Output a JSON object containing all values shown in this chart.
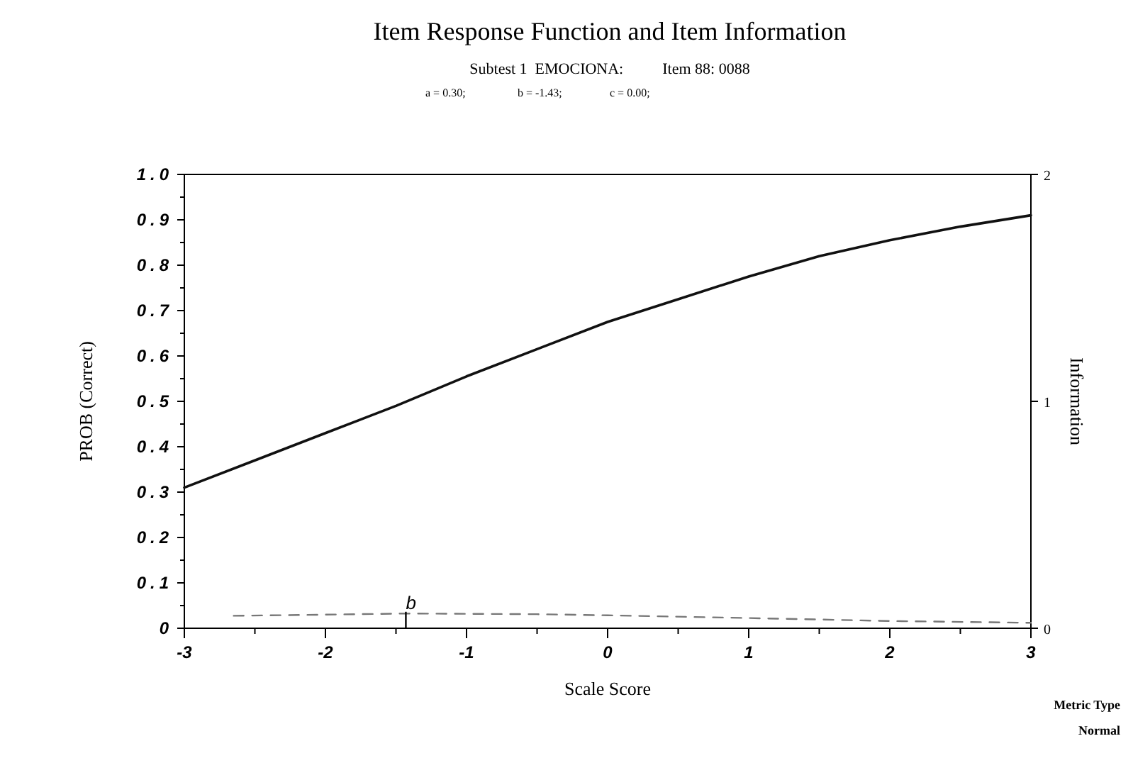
{
  "chart_data": {
    "type": "line",
    "title": "Item Response Function and Item Information",
    "subtitle": "Subtest 1  EMOCIONA:          Item 88: 0088",
    "xlabel": "Scale Score",
    "ylabel": "PROB (Correct)",
    "y2label": "Information",
    "x": [
      -3,
      -2.5,
      -2,
      -1.5,
      -1,
      -0.5,
      0,
      0.5,
      1,
      1.5,
      2,
      2.5,
      3
    ],
    "series": [
      {
        "color": "#111111",
        "line_style": "solid",
        "values": [
          0.31,
          0.37,
          0.43,
          0.49,
          0.555,
          0.615,
          0.675,
          0.725,
          0.775,
          0.82,
          0.855,
          0.885,
          0.91
        ]
      },
      {
        "color": "#777777",
        "line_style": "dashed",
        "axis": "y2",
        "x": [
          -2.65,
          -2,
          -1.43,
          -0.5,
          0,
          1,
          2,
          3
        ],
        "values": [
          0.055,
          0.06,
          0.065,
          0.062,
          0.057,
          0.045,
          0.032,
          0.024
        ]
      }
    ],
    "xlim": [
      -3,
      3
    ],
    "xticks": [
      {
        "value": -3,
        "label": "-3"
      },
      {
        "value": -2.5,
        "label": null
      },
      {
        "value": -2,
        "label": "-2"
      },
      {
        "value": -1.5,
        "label": null
      },
      {
        "value": -1,
        "label": "-1"
      },
      {
        "value": -0.5,
        "label": null
      },
      0,
      {
        "value": 0.5,
        "label": null
      },
      1,
      {
        "value": 1.5,
        "label": null
      },
      2,
      {
        "value": 2.5,
        "label": null
      },
      3
    ],
    "ylim": [
      0,
      1
    ],
    "yticks": [
      0,
      {
        "value": 0.05,
        "label": null
      },
      0.1,
      {
        "value": 0.15,
        "label": null
      },
      0.2,
      {
        "value": 0.25,
        "label": null
      },
      0.3,
      {
        "value": 0.35,
        "label": null
      },
      0.4,
      {
        "value": 0.45,
        "label": null
      },
      0.5,
      {
        "value": 0.55,
        "label": null
      },
      0.6,
      {
        "value": 0.65,
        "label": null
      },
      0.7,
      {
        "value": 0.75,
        "label": null
      },
      0.8,
      {
        "value": 0.85,
        "label": null
      },
      0.9,
      {
        "value": 0.95,
        "label": null
      },
      {
        "value": 1,
        "label": "1.0"
      }
    ],
    "y2lim": [
      0,
      2
    ],
    "y2ticks": [
      0,
      1,
      2
    ],
    "annotations": [
      "a = 0.30;",
      "b = -1.43;",
      "c = 0.00;",
      {
        "text": "b",
        "x": -1.43,
        "y": 0.03
      },
      "Metric Type",
      "Normal"
    ]
  }
}
